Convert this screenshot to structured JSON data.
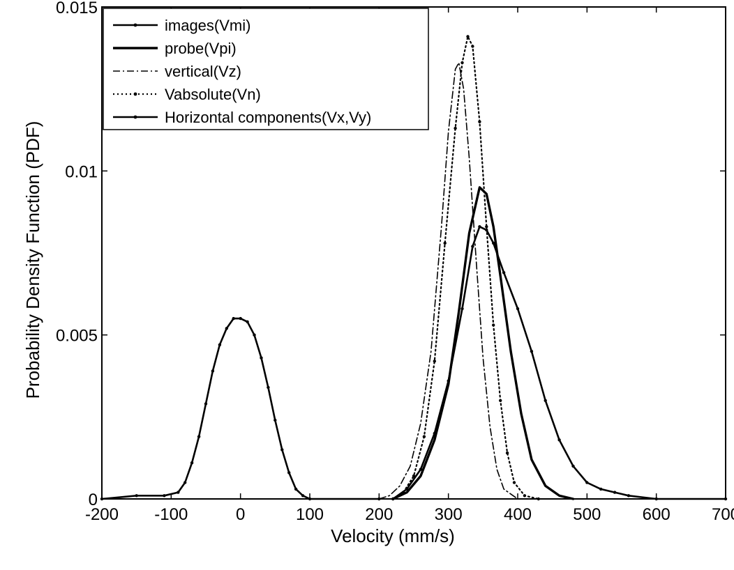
{
  "chart_data": {
    "type": "line",
    "title": "",
    "xlabel": "Velocity (mm/s)",
    "ylabel": "Probability Density Function  (PDF)",
    "xlim": [
      -200,
      700
    ],
    "ylim": [
      0,
      0.015
    ],
    "x_ticks": [
      -200,
      -100,
      0,
      100,
      200,
      300,
      400,
      500,
      600,
      700
    ],
    "x_tick_labels": [
      "-200",
      "-100",
      "0",
      "100",
      "200",
      "300",
      "400",
      "500",
      "600",
      "700"
    ],
    "y_ticks": [
      0,
      0.005,
      0.01,
      0.015
    ],
    "y_tick_labels": [
      "0",
      "0.005",
      "0.01",
      "0.015"
    ],
    "grid": false,
    "legend_position": "top-left",
    "series": [
      {
        "name": "images(Vmi)",
        "style": "solid-dot",
        "points": [
          [
            220,
            0
          ],
          [
            240,
            0.0003
          ],
          [
            260,
            0.0009
          ],
          [
            280,
            0.002
          ],
          [
            300,
            0.0036
          ],
          [
            320,
            0.0058
          ],
          [
            335,
            0.0077
          ],
          [
            345,
            0.0083
          ],
          [
            355,
            0.0082
          ],
          [
            365,
            0.0078
          ],
          [
            380,
            0.0069
          ],
          [
            400,
            0.0058
          ],
          [
            420,
            0.0045
          ],
          [
            440,
            0.003
          ],
          [
            460,
            0.0018
          ],
          [
            480,
            0.001
          ],
          [
            500,
            0.0005
          ],
          [
            520,
            0.0003
          ],
          [
            540,
            0.0002
          ],
          [
            560,
            0.0001
          ],
          [
            600,
            0
          ],
          [
            700,
            0
          ]
        ]
      },
      {
        "name": "probe(Vpi)",
        "style": "solid-thick",
        "points": [
          [
            220,
            0
          ],
          [
            240,
            0.0002
          ],
          [
            260,
            0.0007
          ],
          [
            280,
            0.0018
          ],
          [
            300,
            0.0035
          ],
          [
            315,
            0.0057
          ],
          [
            330,
            0.0081
          ],
          [
            345,
            0.0095
          ],
          [
            355,
            0.0093
          ],
          [
            365,
            0.0083
          ],
          [
            375,
            0.0068
          ],
          [
            390,
            0.0045
          ],
          [
            405,
            0.0026
          ],
          [
            420,
            0.0012
          ],
          [
            440,
            0.0004
          ],
          [
            460,
            0.0001
          ],
          [
            480,
            0
          ]
        ]
      },
      {
        "name": "vertical(Vz)",
        "style": "dashdot",
        "points": [
          [
            200,
            0
          ],
          [
            215,
            0.0001
          ],
          [
            230,
            0.0004
          ],
          [
            245,
            0.001
          ],
          [
            260,
            0.0023
          ],
          [
            275,
            0.0045
          ],
          [
            290,
            0.0083
          ],
          [
            300,
            0.0112
          ],
          [
            310,
            0.0131
          ],
          [
            315,
            0.0133
          ],
          [
            322,
            0.0125
          ],
          [
            330,
            0.0104
          ],
          [
            340,
            0.0073
          ],
          [
            350,
            0.0043
          ],
          [
            360,
            0.0022
          ],
          [
            370,
            0.0009
          ],
          [
            380,
            0.0003
          ],
          [
            400,
            0
          ]
        ]
      },
      {
        "name": "Vabsolute(Vn)",
        "style": "dotted-dot",
        "points": [
          [
            220,
            0
          ],
          [
            235,
            0.0002
          ],
          [
            250,
            0.0007
          ],
          [
            265,
            0.0019
          ],
          [
            280,
            0.0042
          ],
          [
            295,
            0.0078
          ],
          [
            310,
            0.0113
          ],
          [
            320,
            0.0133
          ],
          [
            328,
            0.0141
          ],
          [
            335,
            0.0138
          ],
          [
            345,
            0.0115
          ],
          [
            355,
            0.0083
          ],
          [
            365,
            0.0053
          ],
          [
            375,
            0.003
          ],
          [
            385,
            0.0014
          ],
          [
            395,
            0.0005
          ],
          [
            410,
            0.0001
          ],
          [
            430,
            0
          ]
        ]
      },
      {
        "name": "Horizontal components(Vx,Vy)",
        "style": "solid-dot",
        "points": [
          [
            -200,
            0
          ],
          [
            -150,
            0.0001
          ],
          [
            -110,
            0.0001
          ],
          [
            -90,
            0.0002
          ],
          [
            -80,
            0.0005
          ],
          [
            -70,
            0.0011
          ],
          [
            -60,
            0.0019
          ],
          [
            -50,
            0.0029
          ],
          [
            -40,
            0.0039
          ],
          [
            -30,
            0.0047
          ],
          [
            -20,
            0.0052
          ],
          [
            -10,
            0.0055
          ],
          [
            0,
            0.0055
          ],
          [
            10,
            0.0054
          ],
          [
            20,
            0.005
          ],
          [
            30,
            0.0043
          ],
          [
            40,
            0.0034
          ],
          [
            50,
            0.0024
          ],
          [
            60,
            0.0015
          ],
          [
            70,
            0.0008
          ],
          [
            80,
            0.0003
          ],
          [
            90,
            0.0001
          ],
          [
            100,
            0
          ],
          [
            200,
            0
          ]
        ]
      }
    ]
  }
}
